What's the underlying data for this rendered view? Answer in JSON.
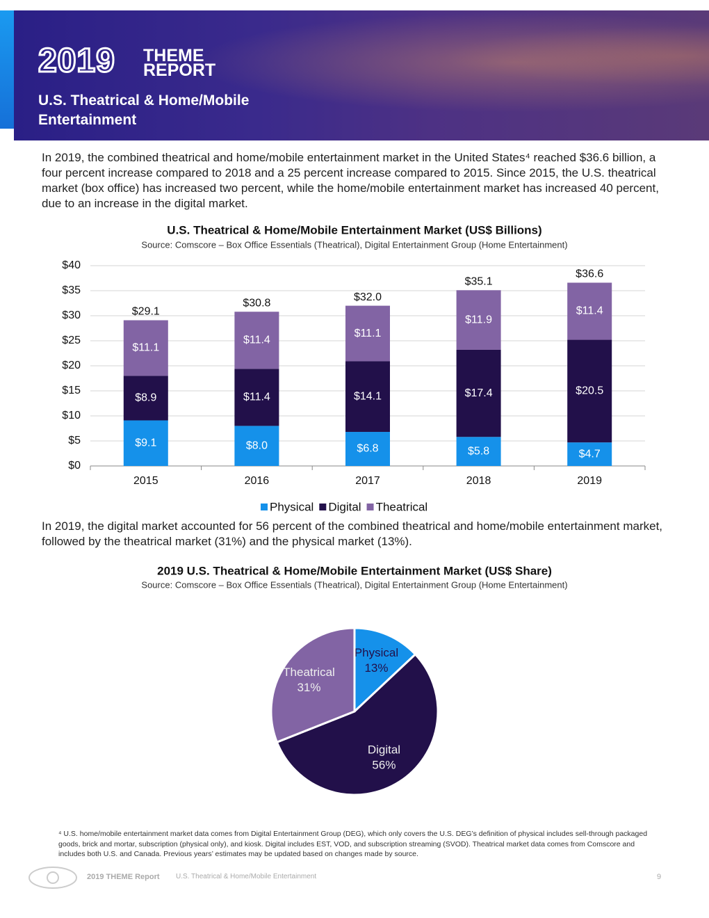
{
  "header": {
    "year": "2019",
    "theme": "THEME",
    "report": "REPORT",
    "title": "U.S. Theatrical & Home/Mobile Entertainment"
  },
  "paragraphs": [
    "In 2019, the combined theatrical and home/mobile entertainment market in the United States⁴ reached $36.6 billion, a four percent increase compared to 2018 and a 25 percent increase compared to 2015. Since 2015, the U.S. theatrical market (box office) has increased two percent, while the home/mobile entertainment market has increased 40 percent, due to an increase in the digital market.",
    "In 2019, the digital market accounted for 56 percent of the combined theatrical and home/mobile entertainment market, followed by the theatrical market (31%) and the physical market (13%)."
  ],
  "chart_data": [
    {
      "type": "bar",
      "stacked": true,
      "title": "U.S. Theatrical & Home/Mobile Entertainment Market (US$ Billions)",
      "subtitle": "Source: Comscore – Box Office Essentials (Theatrical), Digital Entertainment Group (Home Entertainment)",
      "categories": [
        "2015",
        "2016",
        "2017",
        "2018",
        "2019"
      ],
      "series": [
        {
          "name": "Physical",
          "color": "#1591ea",
          "values": [
            9.1,
            8.0,
            6.8,
            5.8,
            4.7
          ],
          "value_labels": [
            "$9.1",
            "$8.0",
            "$6.8",
            "$5.8",
            "$4.7"
          ]
        },
        {
          "name": "Digital",
          "color": "#22104a",
          "values": [
            8.9,
            11.4,
            14.1,
            17.4,
            20.5
          ],
          "value_labels": [
            "$8.9",
            "$11.4",
            "$14.1",
            "$17.4",
            "$20.5"
          ]
        },
        {
          "name": "Theatrical",
          "color": "#8264a4",
          "values": [
            11.1,
            11.4,
            11.1,
            11.9,
            11.4
          ],
          "value_labels": [
            "$11.1",
            "$11.4",
            "$11.1",
            "$11.9",
            "$11.4"
          ]
        }
      ],
      "totals": [
        29.1,
        30.8,
        32.0,
        35.1,
        36.6
      ],
      "total_labels": [
        "$29.1",
        "$30.8",
        "$32.0",
        "$35.1",
        "$36.6"
      ],
      "ylim": [
        0,
        40
      ],
      "yticks": [
        {
          "value": 0,
          "label": "$0"
        },
        {
          "value": 5,
          "label": "$5"
        },
        {
          "value": 10,
          "label": "$10"
        },
        {
          "value": 15,
          "label": "$15"
        },
        {
          "value": 20,
          "label": "$20"
        },
        {
          "value": 25,
          "label": "$25"
        },
        {
          "value": 30,
          "label": "$30"
        },
        {
          "value": 35,
          "label": "$35"
        },
        {
          "value": 40,
          "label": "$40"
        }
      ],
      "grid": true,
      "legend": "bottom"
    },
    {
      "type": "pie",
      "title": "2019 U.S. Theatrical & Home/Mobile Entertainment Market (US$ Share)",
      "subtitle": "Source: Comscore – Box Office Essentials (Theatrical), Digital Entertainment Group (Home Entertainment)",
      "categories": [
        "Physical",
        "Digital",
        "Theatrical"
      ],
      "values": [
        13,
        56,
        31
      ],
      "value_labels": [
        "13%",
        "56%",
        "31%"
      ],
      "colors": [
        "#1591ea",
        "#22104a",
        "#8264a4"
      ]
    }
  ],
  "footnote": "⁴ U.S. home/mobile entertainment market data comes from Digital Entertainment Group (DEG), which only covers the U.S. DEG’s definition of physical includes sell-through packaged goods, brick and mortar, subscription (physical only), and kiosk. Digital includes EST, VOD, and subscription streaming (SVOD). Theatrical market data comes from Comscore and includes both U.S. and Canada. Previous years’ estimates may be updated based on changes made by source.",
  "footer": {
    "report": "2019 THEME Report",
    "section": "U.S. Theatrical & Home/Mobile Entertainment",
    "page": "9"
  }
}
